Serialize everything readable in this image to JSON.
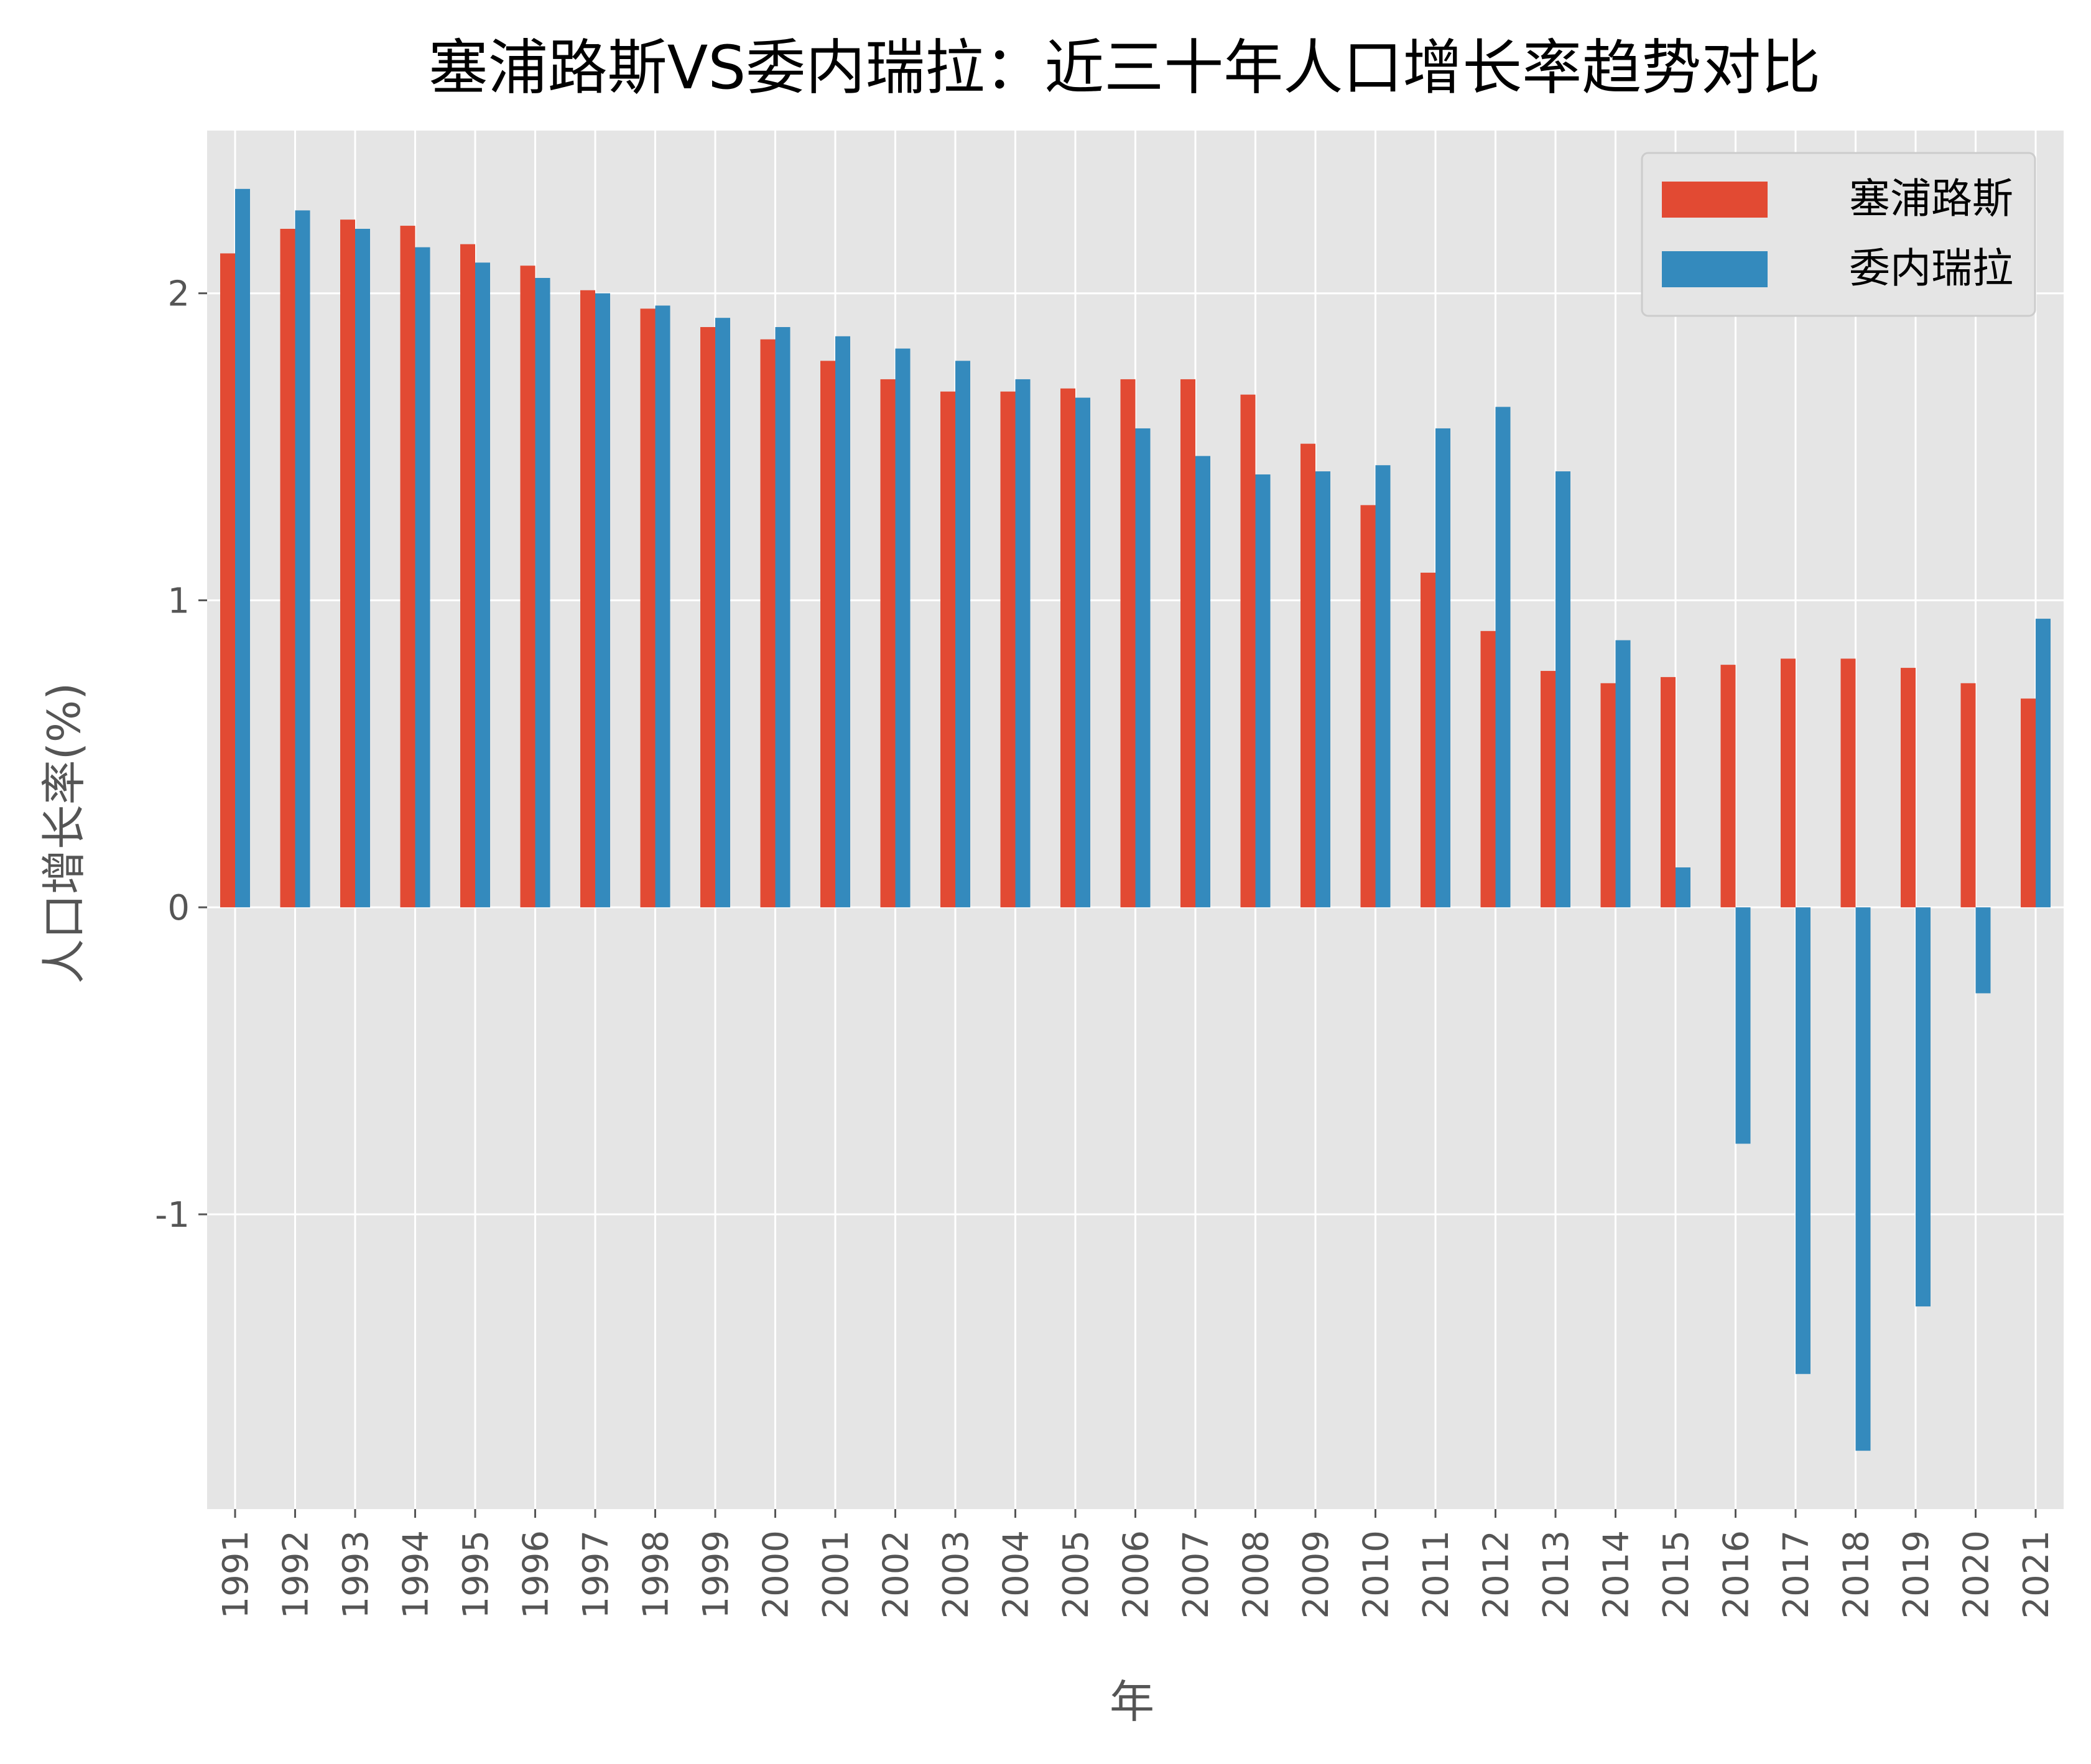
{
  "chart_data": {
    "type": "bar",
    "title": "塞浦路斯VS委内瑞拉：近三十年人口增长率趋势对比",
    "xlabel": "年",
    "ylabel": "人口增长率(%)",
    "categories": [
      "1991",
      "1992",
      "1993",
      "1994",
      "1995",
      "1996",
      "1997",
      "1998",
      "1999",
      "2000",
      "2001",
      "2002",
      "2003",
      "2004",
      "2005",
      "2006",
      "2007",
      "2008",
      "2009",
      "2010",
      "2011",
      "2012",
      "2013",
      "2014",
      "2015",
      "2016",
      "2017",
      "2018",
      "2019",
      "2020",
      "2021"
    ],
    "series": [
      {
        "name": "塞浦路斯",
        "color": "#E24A33",
        "values": [
          2.13,
          2.21,
          2.24,
          2.22,
          2.16,
          2.09,
          2.01,
          1.95,
          1.89,
          1.85,
          1.78,
          1.72,
          1.68,
          1.68,
          1.69,
          1.72,
          1.72,
          1.67,
          1.51,
          1.31,
          1.09,
          0.9,
          0.77,
          0.73,
          0.75,
          0.79,
          0.81,
          0.81,
          0.78,
          0.73,
          0.68
        ]
      },
      {
        "name": "委内瑞拉",
        "color": "#348ABD",
        "values": [
          2.34,
          2.27,
          2.21,
          2.15,
          2.1,
          2.05,
          2.0,
          1.96,
          1.92,
          1.89,
          1.86,
          1.82,
          1.78,
          1.72,
          1.66,
          1.56,
          1.47,
          1.41,
          1.42,
          1.44,
          1.56,
          1.63,
          1.42,
          0.87,
          0.13,
          -0.77,
          -1.52,
          -1.77,
          -1.3,
          -0.28,
          0.94
        ]
      }
    ],
    "ylim": [
      -1.96,
      2.53
    ],
    "yticks": [
      "-1",
      "0",
      "1",
      "2"
    ],
    "grid": true,
    "legend_position": "top-right"
  }
}
